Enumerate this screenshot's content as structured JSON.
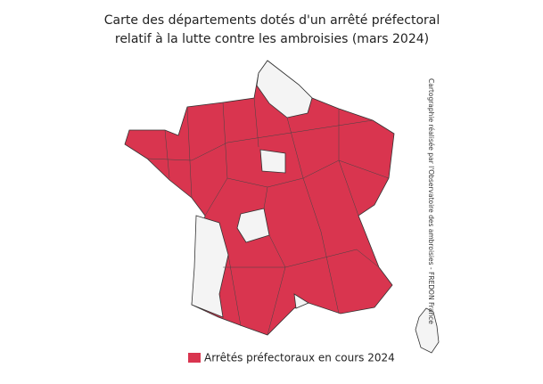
{
  "title": [
    "Carte des départements dotés d'un arrêté préfectoral",
    "relatif à la lutte contre les ambroisies (mars 2024)"
  ],
  "credit": "Cartographie réalisée par l'Observatoire des ambroisies - FREDON France",
  "legend": {
    "label": "Arrêtés préfectoraux en cours 2024",
    "color": "#d9354f"
  }
}
